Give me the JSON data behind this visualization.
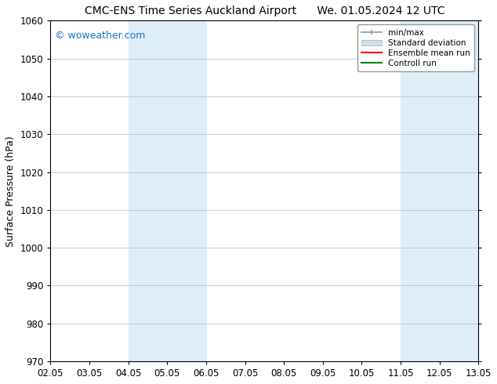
{
  "title_left": "CMC-ENS Time Series Auckland Airport",
  "title_right": "We. 01.05.2024 12 UTC",
  "ylabel": "Surface Pressure (hPa)",
  "ylim": [
    970,
    1060
  ],
  "yticks": [
    970,
    980,
    990,
    1000,
    1010,
    1020,
    1030,
    1040,
    1050,
    1060
  ],
  "xtick_labels": [
    "02.05",
    "03.05",
    "04.05",
    "05.05",
    "06.05",
    "07.05",
    "08.05",
    "09.05",
    "10.05",
    "11.05",
    "12.05",
    "13.05"
  ],
  "xtick_positions": [
    0,
    1,
    2,
    3,
    4,
    5,
    6,
    7,
    8,
    9,
    10,
    11
  ],
  "shaded_bands": [
    {
      "x_start": 2,
      "x_end": 4,
      "color": "#ddeef8"
    },
    {
      "x_start": 9,
      "x_end": 11,
      "color": "#ddeef8"
    }
  ],
  "watermark_text": "© woweather.com",
  "watermark_color": "#1a6fcc",
  "legend_items": [
    {
      "label": "min/max",
      "type": "minmax",
      "color": "#999999"
    },
    {
      "label": "Standard deviation",
      "type": "patch",
      "color": "#cce0f0"
    },
    {
      "label": "Ensemble mean run",
      "type": "line",
      "color": "red"
    },
    {
      "label": "Controll run",
      "type": "line",
      "color": "green"
    }
  ],
  "bg_color": "#ffffff",
  "plot_bg_color": "#ffffff",
  "grid_color": "#bbbbbb",
  "title_fontsize": 10,
  "label_fontsize": 9,
  "tick_fontsize": 8.5
}
